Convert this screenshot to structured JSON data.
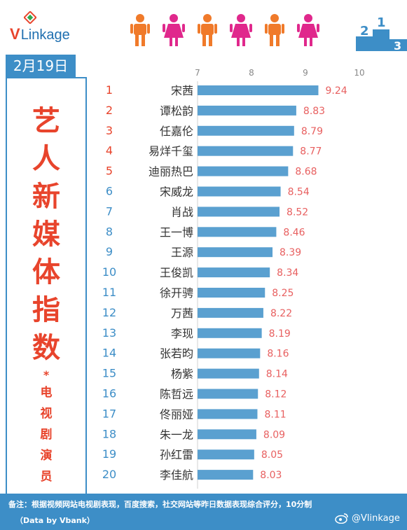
{
  "header": {
    "logo_v": "V",
    "logo_rest": "Linkage",
    "podium_labels": [
      "2",
      "1",
      "3"
    ]
  },
  "date_label": "2月19日",
  "title_chars": [
    "艺",
    "人",
    "新",
    "媒",
    "体",
    "指",
    "数"
  ],
  "star": "*",
  "subtitle_chars": [
    "电",
    "视",
    "剧",
    "演",
    "员"
  ],
  "footer": {
    "note": "备注：根据视频网站电视剧表现，百度搜索，社交网站等昨日数据表现综合评分，10分制",
    "source": "（Data by Vbank）",
    "brand": "@Vlinkage"
  },
  "colors": {
    "accent_blue": "#3d8ec7",
    "bar_blue": "#5aa0d0",
    "value_red": "#e86060",
    "title_red": "#e8442c",
    "figure_orange": "#f07a2a",
    "figure_pink": "#e0288c"
  },
  "chart_data": {
    "type": "bar",
    "orientation": "horizontal",
    "xlim": [
      7,
      10
    ],
    "xticks": [
      7,
      8,
      9,
      10
    ],
    "ranks": [
      1,
      2,
      3,
      4,
      5,
      6,
      7,
      8,
      9,
      10,
      11,
      12,
      13,
      14,
      15,
      16,
      17,
      18,
      19,
      20
    ],
    "categories": [
      "宋茜",
      "谭松韵",
      "任嘉伦",
      "易烊千玺",
      "迪丽热巴",
      "宋威龙",
      "肖战",
      "王一博",
      "王源",
      "王俊凯",
      "徐开骋",
      "万茜",
      "李现",
      "张若昀",
      "杨紫",
      "陈哲远",
      "佟丽娅",
      "朱一龙",
      "孙红雷",
      "李佳航"
    ],
    "values": [
      9.24,
      8.83,
      8.79,
      8.77,
      8.68,
      8.54,
      8.52,
      8.46,
      8.39,
      8.34,
      8.25,
      8.22,
      8.19,
      8.16,
      8.14,
      8.12,
      8.11,
      8.09,
      8.05,
      8.03
    ],
    "value_labels": [
      "9.24",
      "8.83",
      "8.79",
      "8.77",
      "8.68",
      "8.54",
      "8.52",
      "8.46",
      "8.39",
      "8.34",
      "8.25",
      "8.22",
      "8.19",
      "8.16",
      "8.14",
      "8.12",
      "8.11",
      "8.09",
      "8.05",
      "8.03"
    ],
    "grid": false
  }
}
